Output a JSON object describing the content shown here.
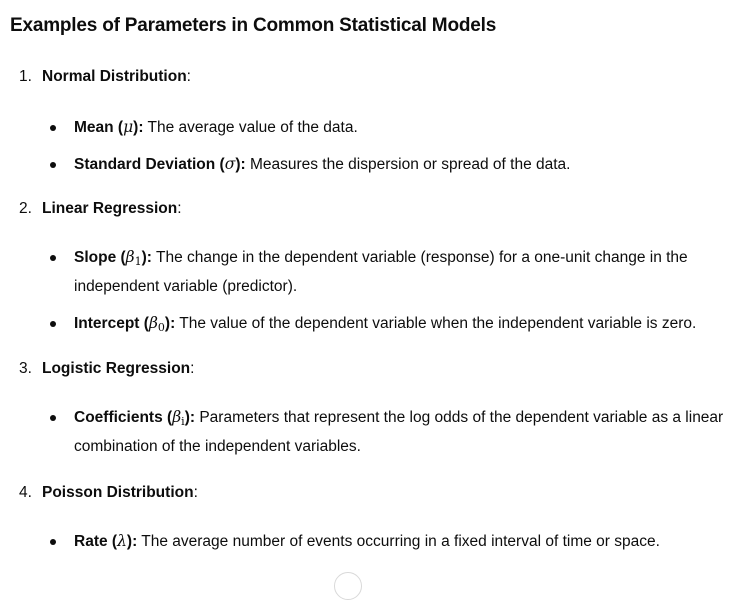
{
  "heading": "Examples of Parameters in Common Statistical Models",
  "sections": [
    {
      "number": "1.",
      "title": "Normal Distribution",
      "suffix": ":",
      "items": [
        {
          "term_pre": "Mean (",
          "symbol": "μ",
          "subscript": "",
          "term_post": "):",
          "desc": " The average value of the data."
        },
        {
          "term_pre": "Standard Deviation (",
          "symbol": "σ",
          "subscript": "",
          "term_post": "):",
          "desc": " Measures the dispersion or spread of the data."
        }
      ]
    },
    {
      "number": "2.",
      "title": "Linear Regression",
      "suffix": ":",
      "items": [
        {
          "term_pre": "Slope (",
          "symbol": "β",
          "subscript": "1",
          "term_post": "):",
          "desc": " The change in the dependent variable (response) for a one-unit change in the independent variable (predictor)."
        },
        {
          "term_pre": "Intercept (",
          "symbol": "β",
          "subscript": "0",
          "term_post": "):",
          "desc": " The value of the dependent variable when the independent variable is zero."
        }
      ]
    },
    {
      "number": "3.",
      "title": "Logistic Regression",
      "suffix": ":",
      "items": [
        {
          "term_pre": "Coefficients (",
          "symbol": "β",
          "subscript": "i",
          "term_post": "):",
          "desc": " Parameters that represent the log odds of the dependent variable as a linear combination of the independent variables."
        }
      ]
    },
    {
      "number": "4.",
      "title": "Poisson Distribution",
      "suffix": ":",
      "items": [
        {
          "term_pre": "Rate (",
          "symbol": "λ",
          "subscript": "",
          "term_post": "):",
          "desc": " The average number of events occurring in a fixed interval of time or space."
        }
      ]
    }
  ],
  "scroll_icon": "scroll-down-icon"
}
